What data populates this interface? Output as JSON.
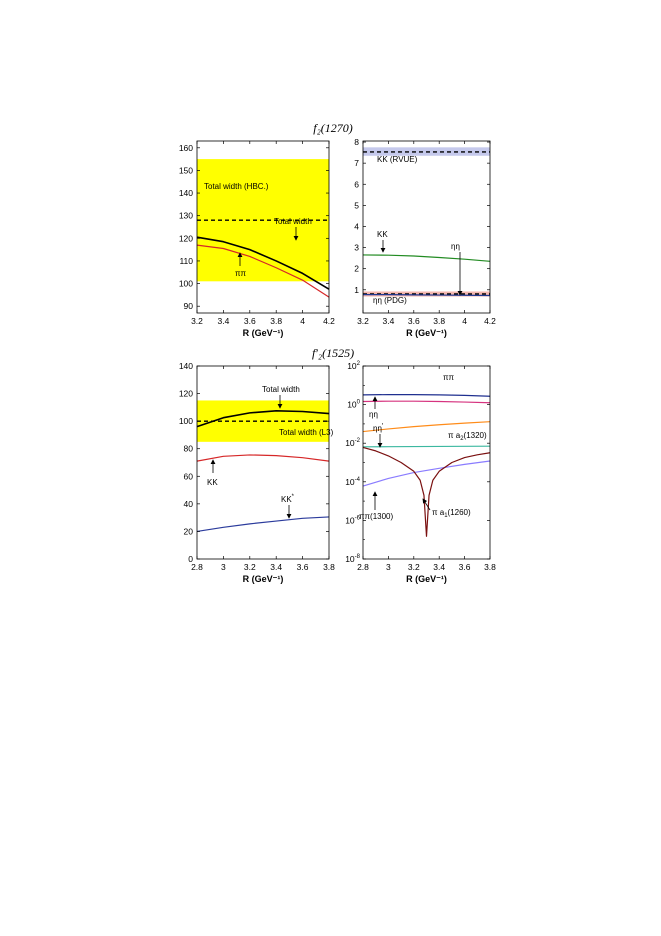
{
  "titles": {
    "top": "f₂(1270)",
    "bottom": "f′₂(1525)"
  },
  "chart_data": [
    {
      "type": "line",
      "panel": "top-left",
      "xlabel": "R (GeV⁻¹)",
      "ylabel": "",
      "xlim": [
        3.2,
        4.2
      ],
      "ylim": [
        87,
        163
      ],
      "xticks": [
        "3.2",
        "3.4",
        "3.6",
        "3.8",
        "4",
        "4.2"
      ],
      "yticks": [
        "90",
        "100",
        "110",
        "120",
        "130",
        "140",
        "150",
        "160"
      ],
      "band": {
        "from": 101,
        "to": 155,
        "color": "#ffff00"
      },
      "hline": {
        "y": 128,
        "style": "dashed",
        "label": "Total width (HBC.)"
      },
      "series": [
        {
          "name": "Total width",
          "color": "#000000",
          "x": [
            3.2,
            3.4,
            3.6,
            3.8,
            4.0,
            4.2
          ],
          "y": [
            120.5,
            118.5,
            115.0,
            110.0,
            104.5,
            97.5
          ]
        },
        {
          "name": "ππ",
          "color": "#d62728",
          "x": [
            3.2,
            3.4,
            3.6,
            3.8,
            4.0,
            4.2
          ],
          "y": [
            117.0,
            115.5,
            112.0,
            107.0,
            101.5,
            94.0
          ]
        }
      ]
    },
    {
      "type": "line",
      "panel": "top-right",
      "xlabel": "R (GeV⁻¹)",
      "ylabel": "",
      "xlim": [
        3.2,
        4.2
      ],
      "ylim": [
        -0.1,
        8.05
      ],
      "xticks": [
        "3.2",
        "3.4",
        "3.6",
        "3.8",
        "4",
        "4.2"
      ],
      "yticks": [
        "1",
        "2",
        "3",
        "4",
        "5",
        "6",
        "7",
        "8"
      ],
      "bands": [
        {
          "from": 7.35,
          "to": 7.75,
          "color": "#c5c9ec"
        },
        {
          "from": 0.68,
          "to": 0.92,
          "color": "#f5b8b0"
        }
      ],
      "hlines": [
        {
          "y": 7.53,
          "style": "dashed",
          "label": "KK (RVUE)"
        },
        {
          "y": 0.8,
          "style": "dashed",
          "label": "ηη (PDG)"
        }
      ],
      "series": [
        {
          "name": "KK",
          "color": "#228b22",
          "x": [
            3.2,
            3.4,
            3.6,
            3.8,
            4.0,
            4.2
          ],
          "y": [
            2.65,
            2.64,
            2.6,
            2.53,
            2.45,
            2.35
          ]
        },
        {
          "name": "ηη",
          "color": "#1f3a93",
          "x": [
            3.2,
            3.4,
            3.6,
            3.8,
            4.0,
            4.2
          ],
          "y": [
            0.77,
            0.77,
            0.76,
            0.75,
            0.74,
            0.73
          ]
        }
      ]
    },
    {
      "type": "line",
      "panel": "bottom-left",
      "xlabel": "R (GeV⁻¹)",
      "ylabel": "",
      "xlim": [
        2.8,
        3.8
      ],
      "ylim": [
        0,
        140
      ],
      "xticks": [
        "2.8",
        "3",
        "3.2",
        "3.4",
        "3.6",
        "3.8"
      ],
      "yticks": [
        "0",
        "20",
        "40",
        "60",
        "80",
        "100",
        "120",
        "140"
      ],
      "band": {
        "from": 85,
        "to": 115,
        "color": "#ffff00"
      },
      "hline": {
        "y": 100,
        "style": "dashed",
        "label": "Total width (L3)"
      },
      "series": [
        {
          "name": "Total width",
          "color": "#000000",
          "x": [
            2.8,
            3.0,
            3.2,
            3.4,
            3.6,
            3.8
          ],
          "y": [
            96,
            102.5,
            106,
            107.5,
            107,
            105.5
          ]
        },
        {
          "name": "KK",
          "color": "#d62728",
          "x": [
            2.8,
            3.0,
            3.2,
            3.4,
            3.6,
            3.8
          ],
          "y": [
            71,
            74.5,
            75.5,
            75,
            73.5,
            71
          ]
        },
        {
          "name": "KK*",
          "color": "#2b3b9c",
          "x": [
            2.8,
            3.0,
            3.2,
            3.4,
            3.6,
            3.8
          ],
          "y": [
            20,
            23,
            25.5,
            27.5,
            29.5,
            30.5
          ]
        }
      ]
    },
    {
      "type": "line",
      "panel": "bottom-right",
      "yscale": "log",
      "xlabel": "R (GeV⁻¹)",
      "ylabel": "",
      "xlim": [
        2.8,
        3.8
      ],
      "ylim": [
        1e-08,
        100
      ],
      "xticks": [
        "2.8",
        "3",
        "3.2",
        "3.4",
        "3.6",
        "3.8"
      ],
      "yticks": [
        "10",
        "10",
        "10",
        "10",
        "10",
        "10"
      ],
      "ytick_exponents": [
        "-8",
        "-6",
        "-4",
        "-2",
        "0",
        "2"
      ],
      "series": [
        {
          "name": "ππ",
          "color": "#1f2f8f",
          "x": [
            2.8,
            3.0,
            3.2,
            3.4,
            3.6,
            3.8
          ],
          "y": [
            3.2,
            3.3,
            3.3,
            3.2,
            3.0,
            2.7
          ]
        },
        {
          "name": "ηη",
          "color": "#d6337f",
          "x": [
            2.8,
            3.0,
            3.2,
            3.4,
            3.6,
            3.8
          ],
          "y": [
            1.45,
            1.5,
            1.5,
            1.45,
            1.35,
            1.25
          ]
        },
        {
          "name": "π a₂(1320)",
          "color": "#ff8c1a",
          "x": [
            2.8,
            3.0,
            3.2,
            3.4,
            3.6,
            3.8
          ],
          "y": [
            0.04,
            0.055,
            0.072,
            0.09,
            0.11,
            0.13
          ]
        },
        {
          "name": "ηη′",
          "color": "#3cb8a0",
          "x": [
            2.8,
            3.0,
            3.2,
            3.4,
            3.6,
            3.8
          ],
          "y": [
            0.0065,
            0.0066,
            0.0067,
            0.0068,
            0.0069,
            0.007
          ]
        },
        {
          "name": "ππ(1300)",
          "color": "#8a7cff",
          "x": [
            2.8,
            3.0,
            3.2,
            3.4,
            3.6,
            3.8
          ],
          "y": [
            6e-05,
            0.00015,
            0.0003,
            0.0005,
            0.0008,
            0.0012
          ]
        },
        {
          "name": "π a₁(1260)",
          "color": "#7a1010",
          "x": [
            2.8,
            2.9,
            3.0,
            3.1,
            3.2,
            3.25,
            3.28,
            3.3,
            3.32,
            3.35,
            3.4,
            3.5,
            3.6,
            3.7,
            3.8
          ],
          "y": [
            0.006,
            0.004,
            0.0022,
            0.001,
            0.00035,
            0.00012,
            2e-05,
            1.5e-07,
            2e-05,
            0.00012,
            0.00035,
            0.001,
            0.0018,
            0.0025,
            0.0032
          ]
        }
      ]
    }
  ],
  "labels": {
    "tl_hbc": "Total width (HBC.)",
    "tl_total": "Total width",
    "tl_pipi": "ππ",
    "tr_rvue": "KK (RVUE)",
    "tr_kk": "KK",
    "tr_etaeta": "ηη",
    "tr_pdg": "ηη (PDG)",
    "bl_total": "Total width",
    "bl_l3": "Total width (L3)",
    "bl_kk": "KK",
    "bl_kkstar_base": "KK",
    "bl_kkstar_sup": "*",
    "br_pipi": "ππ",
    "br_etaeta": "ηη",
    "br_pia2_base": "π a",
    "br_pia2_sub": "2",
    "br_pia2_tail": "(1320)",
    "br_etaetap_base": "ηη",
    "br_etaetap_sup": "′",
    "br_pipi1300": "ππ(1300)",
    "br_pia1_base": "π a",
    "br_pia1_sub": "1",
    "br_pia1_tail": "(1260)"
  }
}
